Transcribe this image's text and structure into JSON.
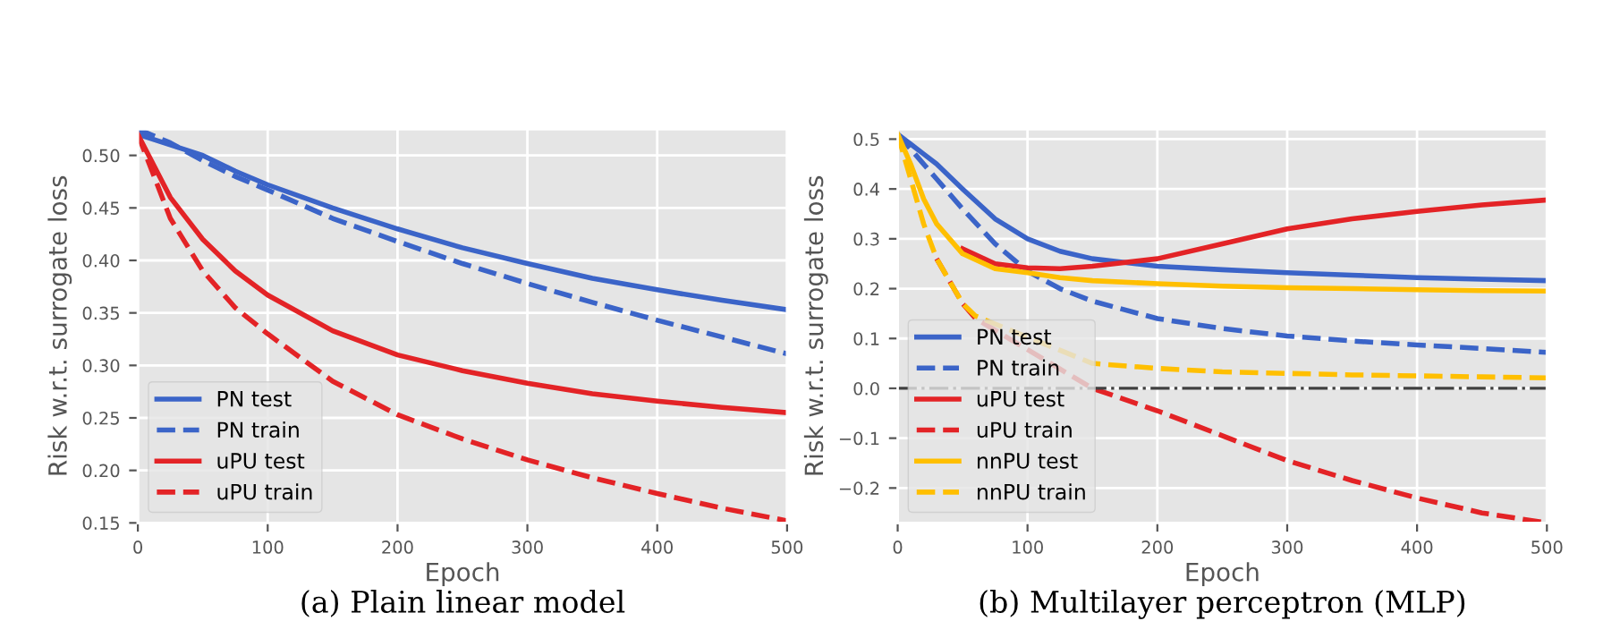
{
  "chart_data": [
    {
      "type": "line",
      "xlabel": "Epoch",
      "ylabel": "Risk w.r.t. surrogate loss",
      "annotations": [
        "(a) Plain linear model"
      ],
      "x": [
        0,
        25,
        50,
        75,
        100,
        150,
        200,
        250,
        300,
        350,
        400,
        450,
        500
      ],
      "xlim": [
        0,
        500
      ],
      "xticks": [
        0,
        100,
        200,
        300,
        400,
        500
      ],
      "ylim": [
        0.15,
        0.525
      ],
      "yticks": [
        {
          "value": 0.15,
          "label": "0.15"
        },
        {
          "value": 0.2,
          "label": "0.20"
        },
        {
          "value": 0.25,
          "label": "0.25"
        },
        {
          "value": 0.3,
          "label": "0.30"
        },
        {
          "value": 0.35,
          "label": "0.35"
        },
        {
          "value": 0.4,
          "label": "0.40"
        },
        {
          "value": 0.45,
          "label": "0.45"
        },
        {
          "value": 0.5,
          "label": "0.50"
        }
      ],
      "grid": true,
      "legend": "bottom left",
      "marker": "none",
      "series": [
        {
          "name": "PN test",
          "color": "#3b64c8",
          "line_style": "solid",
          "values": [
            0.52,
            0.51,
            0.5,
            0.485,
            0.472,
            0.45,
            0.43,
            0.412,
            0.397,
            0.383,
            0.372,
            0.362,
            0.353
          ]
        },
        {
          "name": "PN train",
          "color": "#3b64c8",
          "line_style": "dashed",
          "values": [
            0.525,
            0.512,
            0.495,
            0.48,
            0.467,
            0.44,
            0.418,
            0.397,
            0.378,
            0.36,
            0.343,
            0.327,
            0.311
          ]
        },
        {
          "name": "uPU test",
          "color": "#e32326",
          "line_style": "solid",
          "values": [
            0.52,
            0.46,
            0.42,
            0.39,
            0.367,
            0.333,
            0.31,
            0.295,
            0.283,
            0.273,
            0.266,
            0.26,
            0.255
          ]
        },
        {
          "name": "uPU train",
          "color": "#e32326",
          "line_style": "dashed",
          "values": [
            0.52,
            0.44,
            0.39,
            0.355,
            0.33,
            0.285,
            0.253,
            0.23,
            0.21,
            0.193,
            0.178,
            0.164,
            0.152
          ]
        }
      ]
    },
    {
      "type": "line",
      "xlabel": "Epoch",
      "ylabel": "Risk w.r.t. surrogate loss",
      "annotations": [
        "(b) Multilayer perceptron (MLP)"
      ],
      "x": [
        0,
        10,
        20,
        30,
        50,
        75,
        100,
        125,
        150,
        200,
        250,
        300,
        350,
        400,
        450,
        500
      ],
      "xlim": [
        0,
        500
      ],
      "xticks": [
        0,
        100,
        200,
        300,
        400,
        500
      ],
      "ylim": [
        -0.27,
        0.52
      ],
      "yticks": [
        {
          "value": -0.2,
          "label": "−0.2"
        },
        {
          "value": -0.1,
          "label": "−0.1"
        },
        {
          "value": 0.0,
          "label": "0.0"
        },
        0.1,
        0.2,
        0.3,
        0.4,
        0.5
      ],
      "grid": true,
      "legend": "bottom left",
      "marker": "none",
      "ref_lines": [
        {
          "axis": "y",
          "value": 0,
          "color": "#404040",
          "line_style": "dashdot"
        }
      ],
      "series": [
        {
          "name": "PN test",
          "color": "#3b64c8",
          "line_style": "solid",
          "values": [
            0.51,
            0.49,
            0.47,
            0.45,
            0.4,
            0.34,
            0.3,
            0.275,
            0.26,
            0.245,
            0.238,
            0.232,
            0.227,
            0.222,
            0.219,
            0.216
          ]
        },
        {
          "name": "PN train",
          "color": "#3b64c8",
          "line_style": "dashed",
          "values": [
            0.51,
            0.48,
            0.45,
            0.42,
            0.36,
            0.29,
            0.235,
            0.2,
            0.175,
            0.14,
            0.12,
            0.105,
            0.095,
            0.087,
            0.08,
            0.072
          ]
        },
        {
          "name": "uPU test",
          "color": "#e32326",
          "line_style": "solid",
          "x": [
            50,
            75,
            100,
            125,
            150,
            200,
            250,
            300,
            350,
            400,
            450,
            500
          ],
          "values": [
            0.28,
            0.25,
            0.242,
            0.24,
            0.245,
            0.26,
            0.29,
            0.32,
            0.34,
            0.355,
            0.368,
            0.378
          ]
        },
        {
          "name": "uPU train",
          "color": "#e32326",
          "line_style": "dashed",
          "x": [
            30,
            50,
            60,
            150,
            200,
            250,
            300,
            350,
            400,
            450,
            500
          ],
          "values": [
            0.26,
            0.17,
            0.14,
            0.0,
            -0.045,
            -0.095,
            -0.145,
            -0.185,
            -0.22,
            -0.25,
            -0.27
          ]
        },
        {
          "name": "nnPU test",
          "color": "#ffbf00",
          "line_style": "solid",
          "values": [
            0.51,
            0.45,
            0.38,
            0.33,
            0.27,
            0.24,
            0.232,
            0.222,
            0.216,
            0.21,
            0.205,
            0.202,
            0.2,
            0.198,
            0.196,
            0.195
          ]
        },
        {
          "name": "nnPU train",
          "color": "#ffbf00",
          "line_style": "dashed",
          "x": [
            0,
            10,
            20,
            30,
            50,
            60,
            150,
            200,
            250,
            300,
            350,
            400,
            450,
            500
          ],
          "values": [
            0.51,
            0.42,
            0.33,
            0.26,
            0.17,
            0.145,
            0.05,
            0.04,
            0.033,
            0.03,
            0.027,
            0.025,
            0.023,
            0.021
          ]
        }
      ]
    }
  ]
}
